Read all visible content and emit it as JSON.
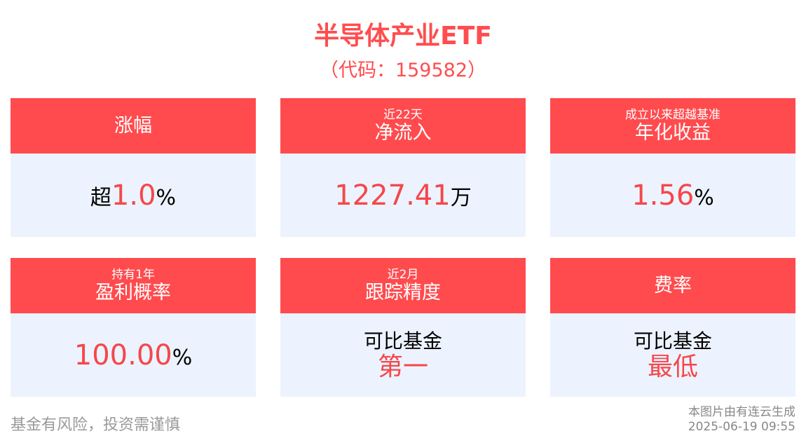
{
  "header": {
    "title": "半导体产业ETF",
    "code": "（代码：159582）"
  },
  "cards": [
    {
      "sub": "",
      "title": "涨幅",
      "prefix": "超",
      "value": "1.0",
      "unit": "%"
    },
    {
      "sub": "近22天",
      "title": "净流入",
      "prefix": "",
      "value": "1227.41",
      "unit": "万"
    },
    {
      "sub": "成立以来超越基准",
      "title": "年化收益",
      "prefix": "",
      "value": "1.56",
      "unit": "%"
    },
    {
      "sub": "持有1年",
      "title": "盈利概率",
      "prefix": "",
      "value": "100.00",
      "unit": "%"
    },
    {
      "sub": "近2月",
      "title": "跟踪精度",
      "line1": "可比基金",
      "line2": "第一"
    },
    {
      "sub": "",
      "title": "费率",
      "line1": "可比基金",
      "line2": "最低"
    }
  ],
  "footer": {
    "risk": "基金有风险，投资需谨慎",
    "generated_by": "本图片由有连云生成",
    "timestamp": "2025-06-19 09:55"
  },
  "colors": {
    "accent": "#ff4b4e",
    "card_body": "#ecf3fe"
  }
}
